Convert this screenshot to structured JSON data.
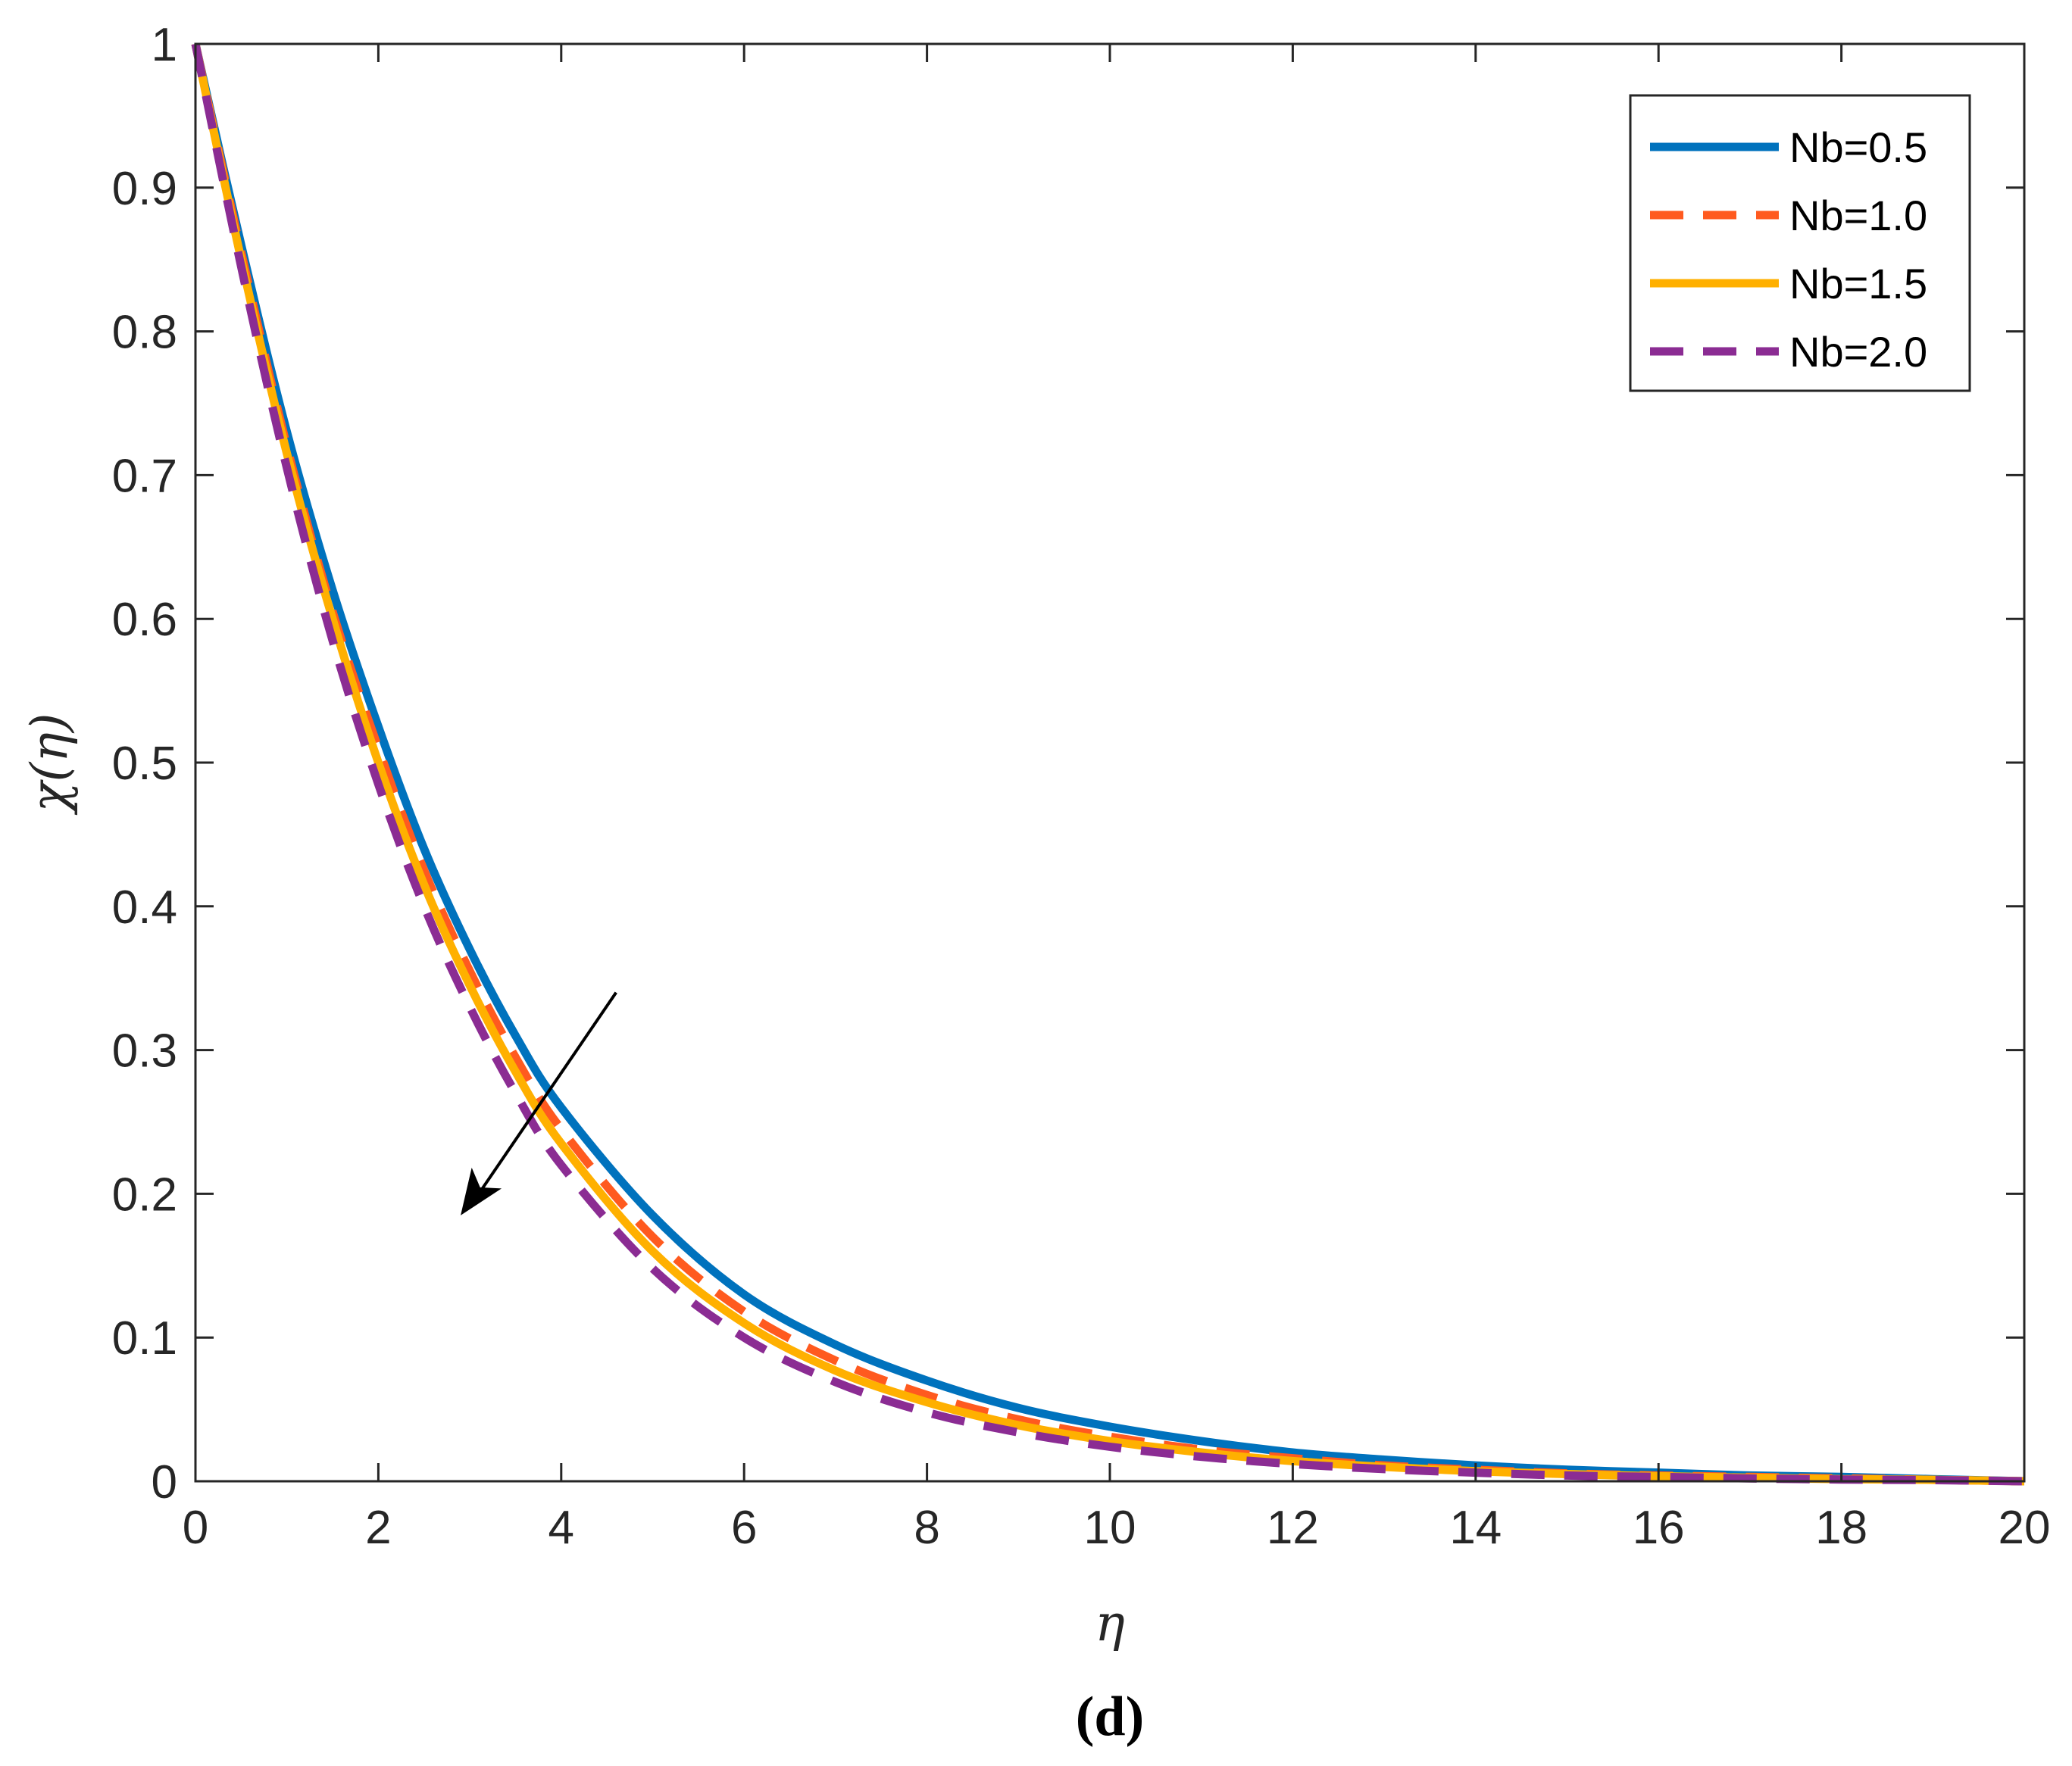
{
  "chart_data": {
    "type": "line",
    "title": "",
    "xlabel": "η",
    "ylabel": "χ(η)",
    "caption": "(d)",
    "xlim": [
      0,
      20
    ],
    "ylim": [
      0,
      1
    ],
    "xticks": [
      0,
      2,
      4,
      6,
      8,
      10,
      12,
      14,
      16,
      18,
      20
    ],
    "yticks": [
      0,
      0.1,
      0.2,
      0.3,
      0.4,
      0.5,
      0.6,
      0.7,
      0.8,
      0.9,
      1
    ],
    "xtick_labels": [
      "0",
      "2",
      "4",
      "6",
      "8",
      "10",
      "12",
      "14",
      "16",
      "18",
      "20"
    ],
    "ytick_labels": [
      "0",
      "0.1",
      "0.2",
      "0.3",
      "0.4",
      "0.5",
      "0.6",
      "0.7",
      "0.8",
      "0.9",
      "1"
    ],
    "grid": false,
    "legend_position": "top-right",
    "x": [
      0,
      0.5,
      1,
      1.5,
      2,
      2.5,
      3,
      3.5,
      4,
      5,
      6,
      7,
      8,
      9,
      10,
      11,
      12,
      13,
      14,
      15,
      16,
      17,
      18,
      19,
      20
    ],
    "series": [
      {
        "name": "Nb=0.5",
        "color": "#0072BD",
        "dash": "solid",
        "values": [
          1.0,
          0.86,
          0.73,
          0.62,
          0.525,
          0.44,
          0.37,
          0.31,
          0.26,
          0.185,
          0.13,
          0.095,
          0.07,
          0.051,
          0.038,
          0.028,
          0.02,
          0.015,
          0.011,
          0.008,
          0.006,
          0.004,
          0.003,
          0.0015,
          0.0
        ]
      },
      {
        "name": "Nb=1.0",
        "color": "#FF5A1F",
        "dash": "dashed",
        "values": [
          1.0,
          0.855,
          0.72,
          0.605,
          0.51,
          0.425,
          0.355,
          0.295,
          0.245,
          0.17,
          0.118,
          0.084,
          0.06,
          0.043,
          0.031,
          0.022,
          0.016,
          0.011,
          0.008,
          0.0055,
          0.004,
          0.003,
          0.002,
          0.001,
          0.0
        ]
      },
      {
        "name": "Nb=1.5",
        "color": "#FFB000",
        "dash": "solid",
        "values": [
          1.0,
          0.85,
          0.715,
          0.6,
          0.5,
          0.415,
          0.345,
          0.285,
          0.235,
          0.16,
          0.11,
          0.077,
          0.055,
          0.039,
          0.028,
          0.02,
          0.014,
          0.01,
          0.007,
          0.005,
          0.0035,
          0.0025,
          0.0015,
          0.001,
          0.0
        ]
      },
      {
        "name": "Nb=2.0",
        "color": "#8B2C93",
        "dash": "dashed",
        "values": [
          1.0,
          0.845,
          0.705,
          0.585,
          0.485,
          0.4,
          0.33,
          0.27,
          0.22,
          0.148,
          0.1,
          0.069,
          0.048,
          0.034,
          0.024,
          0.017,
          0.012,
          0.0085,
          0.006,
          0.004,
          0.003,
          0.002,
          0.0012,
          0.0008,
          0.0
        ]
      }
    ],
    "annotation": {
      "type": "arrow",
      "from": [
        4.6,
        0.34
      ],
      "to": [
        2.9,
        0.185
      ]
    }
  }
}
